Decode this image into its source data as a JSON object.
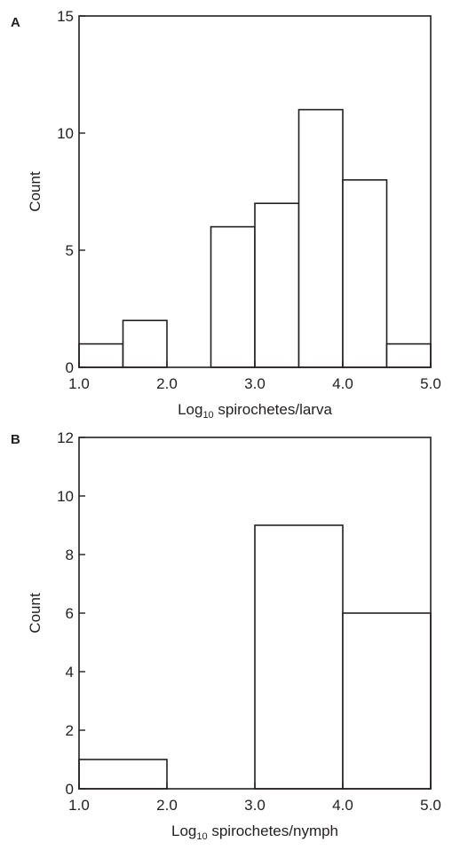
{
  "chart_data": [
    {
      "type": "bar",
      "panel_label": "A",
      "bin_edges": [
        1.0,
        1.5,
        2.0,
        2.5,
        3.0,
        3.5,
        4.0,
        4.5,
        5.0
      ],
      "counts": [
        1,
        2,
        0,
        6,
        7,
        11,
        8,
        1
      ],
      "xlim": [
        1.0,
        5.0
      ],
      "ylim": [
        0,
        15
      ],
      "xticks": [
        "1.0",
        "2.0",
        "3.0",
        "4.0",
        "5.0"
      ],
      "yticks": [
        "0",
        "5",
        "10",
        "15"
      ],
      "xlabel_prefix": "Log",
      "xlabel_subscript": "10",
      "xlabel_suffix": " spirochetes/larva",
      "ylabel": "Count"
    },
    {
      "type": "bar",
      "panel_label": "B",
      "bin_edges": [
        1.0,
        2.0,
        3.0,
        4.0,
        5.0
      ],
      "counts": [
        1,
        0,
        9,
        6
      ],
      "xlim": [
        1.0,
        5.0
      ],
      "ylim": [
        0,
        12
      ],
      "xticks": [
        "1.0",
        "2.0",
        "3.0",
        "4.0",
        "5.0"
      ],
      "yticks": [
        "0",
        "2",
        "4",
        "6",
        "8",
        "10",
        "12"
      ],
      "xlabel_prefix": "Log",
      "xlabel_subscript": "10",
      "xlabel_suffix": " spirochetes/nymph",
      "ylabel": "Count"
    }
  ]
}
